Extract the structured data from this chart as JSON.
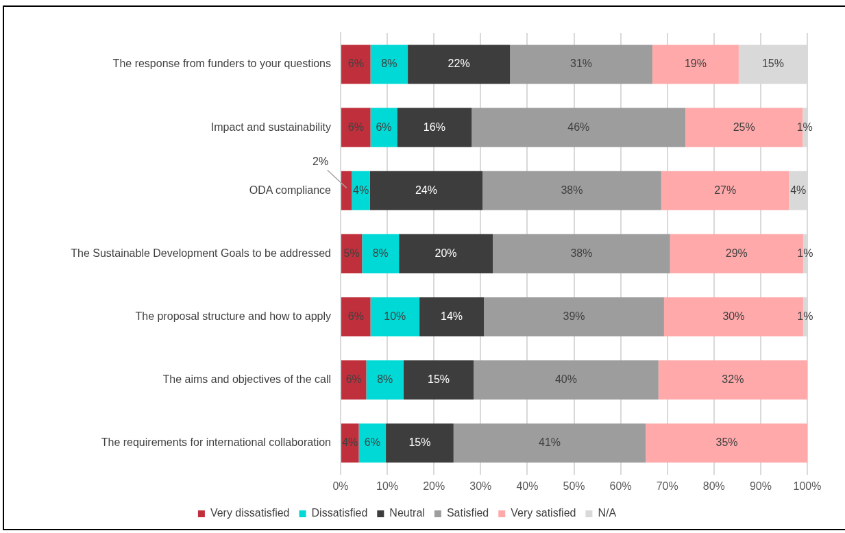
{
  "chart_data": {
    "type": "bar",
    "orientation": "horizontal",
    "stacked": true,
    "categories": [
      "The response from funders to your questions",
      "Impact and sustainability",
      "ODA compliance",
      "The Sustainable Development Goals to be addressed",
      "The proposal structure and how to apply",
      "The aims and objectives of the call",
      "The requirements for international collaboration"
    ],
    "series": [
      {
        "name": "Very dissatisfied",
        "color": "#c0303c",
        "values": [
          6.4,
          6.4,
          2.4,
          4.6,
          6.4,
          5.5,
          3.9
        ],
        "value_labels": [
          "6%",
          "6%",
          "2%",
          "5%",
          "6%",
          "6%",
          "4%"
        ]
      },
      {
        "name": "Dissatisfied",
        "color": "#00d9d5",
        "values": [
          8.0,
          5.7,
          3.9,
          7.9,
          10.5,
          8.0,
          5.8
        ],
        "value_labels": [
          "8%",
          "6%",
          "4%",
          "8%",
          "10%",
          "8%",
          "6%"
        ]
      },
      {
        "name": "Neutral",
        "color": "#3d3d3d",
        "values": [
          21.9,
          16.0,
          24.1,
          20.1,
          13.8,
          15.0,
          14.5
        ],
        "value_labels": [
          "22%",
          "16%",
          "24%",
          "20%",
          "14%",
          "15%",
          "15%"
        ]
      },
      {
        "name": "Satisfied",
        "color": "#9d9d9d",
        "values": [
          30.5,
          45.8,
          38.3,
          38.0,
          38.6,
          39.6,
          41.2
        ],
        "value_labels": [
          "31%",
          "46%",
          "38%",
          "38%",
          "39%",
          "40%",
          "41%"
        ]
      },
      {
        "name": "Very satisfied",
        "color": "#ffa9aa",
        "values": [
          18.5,
          25.1,
          27.4,
          28.5,
          29.8,
          31.9,
          34.7
        ],
        "value_labels": [
          "19%",
          "25%",
          "27%",
          "29%",
          "30%",
          "32%",
          "35%"
        ]
      },
      {
        "name": "N/A",
        "color": "#d9d9d9",
        "values": [
          14.7,
          0.9,
          3.9,
          0.9,
          0.9,
          null,
          null
        ],
        "value_labels": [
          "15%",
          "1%",
          "4%",
          "1%",
          "1%",
          null,
          null
        ]
      }
    ],
    "xlim": [
      0,
      100
    ],
    "xticks": [
      {
        "value": 0,
        "label": "0%"
      },
      {
        "value": 10,
        "label": "10%"
      },
      {
        "value": 20,
        "label": "20%"
      },
      {
        "value": 30,
        "label": "30%"
      },
      {
        "value": 40,
        "label": "40%"
      },
      {
        "value": 50,
        "label": "50%"
      },
      {
        "value": 60,
        "label": "60%"
      },
      {
        "value": 70,
        "label": "70%"
      },
      {
        "value": 80,
        "label": "80%"
      },
      {
        "value": 90,
        "label": "90%"
      },
      {
        "value": 100,
        "label": "100%"
      }
    ],
    "grid": "x",
    "legend": "bottom",
    "marker": "square"
  }
}
